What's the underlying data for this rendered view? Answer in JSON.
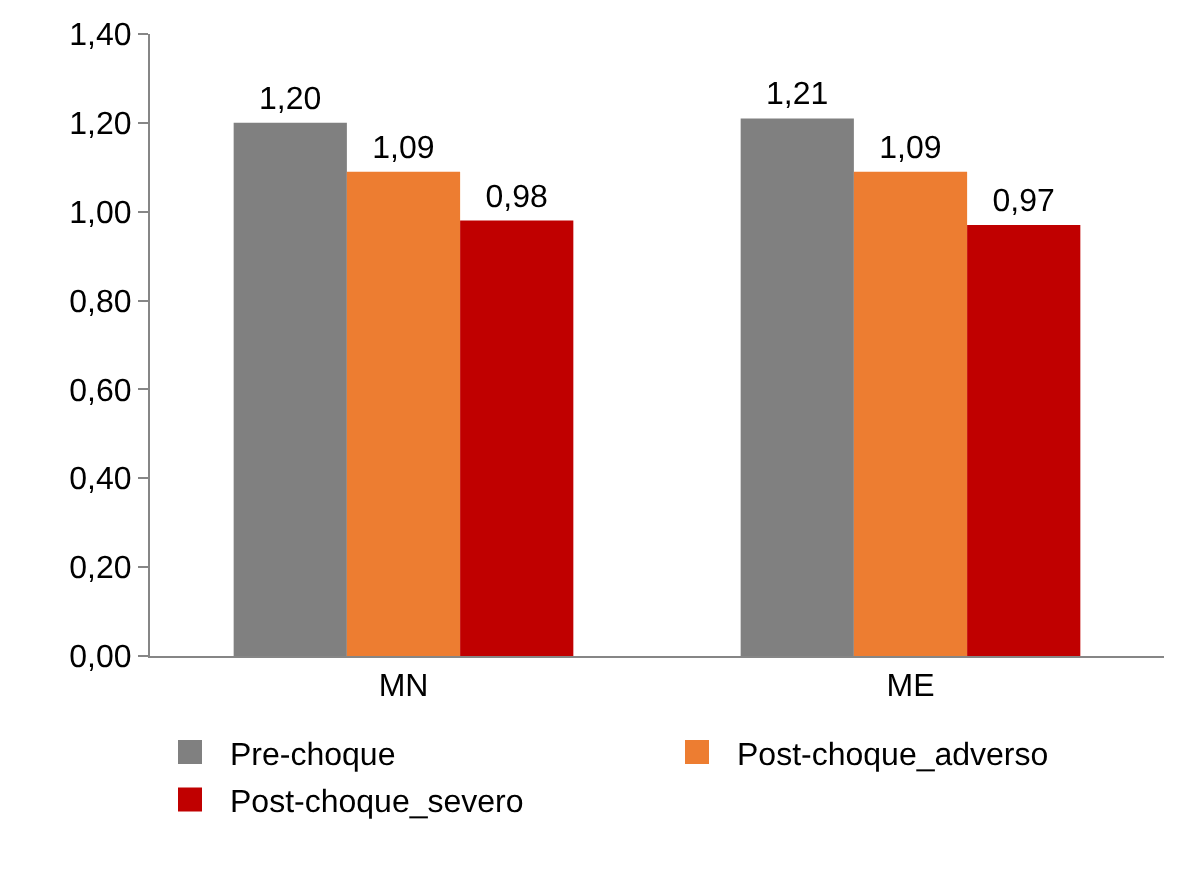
{
  "chart_data": {
    "type": "bar",
    "categories": [
      "MN",
      "ME"
    ],
    "series": [
      {
        "name": "Pre-choque",
        "color": "#808080",
        "values": [
          1.2,
          1.21
        ],
        "value_labels": [
          "1,20",
          "1,21"
        ]
      },
      {
        "name": "Post-choque_adverso",
        "color": "#ed7d31",
        "values": [
          1.09,
          1.09
        ],
        "value_labels": [
          "1,09",
          "1,09"
        ]
      },
      {
        "name": "Post-choque_severo",
        "color": "#c00000",
        "values": [
          0.98,
          0.97
        ],
        "value_labels": [
          "0,98",
          "0,97"
        ]
      }
    ],
    "ylim": [
      0,
      1.4
    ],
    "yticks": [
      {
        "value": 0,
        "label": "0,00"
      },
      {
        "value": 0.2,
        "label": "0,20"
      },
      {
        "value": 0.4,
        "label": "0,40"
      },
      {
        "value": 0.6,
        "label": "0,60"
      },
      {
        "value": 0.8,
        "label": "0,80"
      },
      {
        "value": 1.0,
        "label": "1,00"
      },
      {
        "value": 1.2,
        "label": "1,20"
      },
      {
        "value": 1.4,
        "label": "1,40"
      }
    ],
    "legend": "bottom"
  }
}
